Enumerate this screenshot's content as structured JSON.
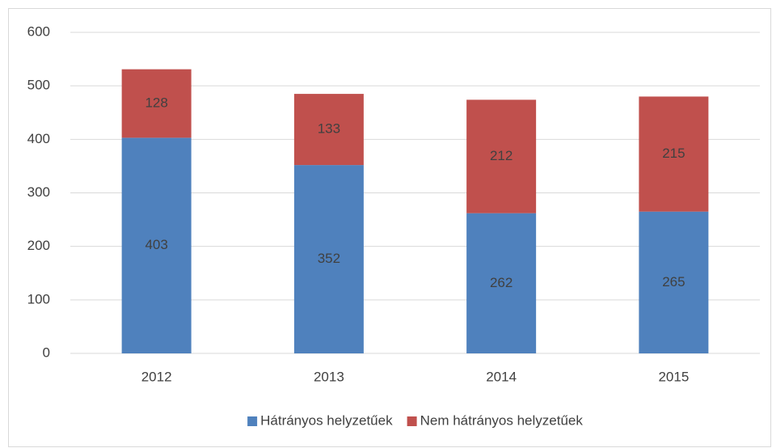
{
  "chart_data": {
    "type": "bar",
    "stacked": true,
    "categories": [
      "2012",
      "2013",
      "2014",
      "2015"
    ],
    "series": [
      {
        "name": "Hátrányos helyzetűek",
        "color": "#4f81bd",
        "values": [
          403,
          352,
          262,
          265
        ]
      },
      {
        "name": "Nem hátrányos helyzetűek",
        "color": "#c0504d",
        "values": [
          128,
          133,
          212,
          215
        ]
      }
    ],
    "ylim": [
      0,
      600
    ],
    "yticks": [
      0,
      100,
      200,
      300,
      400,
      500,
      600
    ],
    "grid": true,
    "legend": "bottom"
  }
}
